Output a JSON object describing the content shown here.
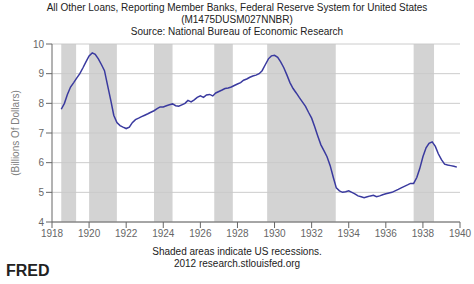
{
  "chart_data": {
    "type": "line",
    "title": "All Other Loans, Reporting Member Banks, Federal Reserve System for United States (M1475DUSM027NNBR)",
    "subtitle": "Source: National Bureau of Economic Research",
    "y_label": "(Billions Of Dollars)",
    "annotations": [
      "Shaded areas indicate US recessions.",
      "2012 research.stlouisfed.org",
      "FRED"
    ],
    "xlim": [
      1918,
      1940
    ],
    "ylim": [
      4,
      10
    ],
    "yticks": [
      4,
      5,
      6,
      7,
      8,
      9,
      10
    ],
    "xticks": [
      1918,
      1920,
      1922,
      1924,
      1926,
      1928,
      1930,
      1932,
      1934,
      1936,
      1938,
      1940
    ],
    "grid": true,
    "color": "#3a3a9f",
    "recessions": {
      "color": "#c8c8c8",
      "ranges": [
        [
          1918.5,
          1919.3
        ],
        [
          1920.0,
          1921.5
        ],
        [
          1923.5,
          1924.5
        ],
        [
          1926.75,
          1927.75
        ],
        [
          1929.6,
          1933.3
        ],
        [
          1937.5,
          1938.6
        ]
      ]
    },
    "x": [
      1918.5,
      1918.67,
      1918.83,
      1919.0,
      1919.17,
      1919.33,
      1919.5,
      1919.67,
      1919.83,
      1920.0,
      1920.17,
      1920.33,
      1920.5,
      1920.67,
      1920.83,
      1921.0,
      1921.17,
      1921.33,
      1921.5,
      1921.67,
      1921.83,
      1922.0,
      1922.17,
      1922.33,
      1922.5,
      1922.67,
      1922.83,
      1923.0,
      1923.17,
      1923.33,
      1923.5,
      1923.67,
      1923.83,
      1924.0,
      1924.17,
      1924.33,
      1924.5,
      1924.67,
      1924.83,
      1925.0,
      1925.17,
      1925.33,
      1925.5,
      1925.67,
      1925.83,
      1926.0,
      1926.17,
      1926.33,
      1926.5,
      1926.67,
      1926.83,
      1927.0,
      1927.17,
      1927.33,
      1927.5,
      1927.67,
      1927.83,
      1928.0,
      1928.17,
      1928.33,
      1928.5,
      1928.67,
      1928.83,
      1929.0,
      1929.17,
      1929.33,
      1929.5,
      1929.67,
      1929.83,
      1930.0,
      1930.17,
      1930.33,
      1930.5,
      1930.67,
      1930.83,
      1931.0,
      1931.17,
      1931.33,
      1931.5,
      1931.67,
      1931.83,
      1932.0,
      1932.17,
      1932.33,
      1932.5,
      1932.67,
      1932.83,
      1933.0,
      1933.17,
      1933.33,
      1933.5,
      1933.67,
      1933.83,
      1934.0,
      1934.17,
      1934.33,
      1934.5,
      1934.67,
      1934.83,
      1935.0,
      1935.17,
      1935.33,
      1935.5,
      1935.67,
      1935.83,
      1936.0,
      1936.17,
      1936.33,
      1936.5,
      1936.67,
      1936.83,
      1937.0,
      1937.17,
      1937.33,
      1937.5,
      1937.67,
      1937.83,
      1938.0,
      1938.17,
      1938.33,
      1938.5,
      1938.67,
      1938.83,
      1939.0,
      1939.17,
      1939.33,
      1939.5,
      1939.67,
      1939.83
    ],
    "values": [
      7.8,
      8.0,
      8.3,
      8.55,
      8.7,
      8.85,
      9.0,
      9.2,
      9.4,
      9.6,
      9.7,
      9.65,
      9.5,
      9.3,
      9.1,
      8.6,
      8.1,
      7.6,
      7.35,
      7.25,
      7.2,
      7.15,
      7.2,
      7.35,
      7.45,
      7.5,
      7.55,
      7.6,
      7.65,
      7.7,
      7.75,
      7.82,
      7.88,
      7.88,
      7.92,
      7.95,
      7.98,
      7.92,
      7.9,
      7.95,
      8.0,
      8.1,
      8.05,
      8.12,
      8.2,
      8.25,
      8.2,
      8.28,
      8.3,
      8.25,
      8.35,
      8.4,
      8.45,
      8.5,
      8.52,
      8.55,
      8.6,
      8.65,
      8.7,
      8.78,
      8.82,
      8.88,
      8.92,
      8.95,
      9.0,
      9.1,
      9.3,
      9.5,
      9.6,
      9.62,
      9.55,
      9.4,
      9.2,
      8.95,
      8.7,
      8.5,
      8.35,
      8.2,
      8.05,
      7.9,
      7.7,
      7.5,
      7.2,
      6.9,
      6.6,
      6.4,
      6.2,
      5.9,
      5.5,
      5.15,
      5.05,
      5.0,
      5.02,
      5.05,
      5.0,
      4.95,
      4.88,
      4.85,
      4.82,
      4.85,
      4.88,
      4.9,
      4.85,
      4.88,
      4.92,
      4.95,
      4.98,
      5.0,
      5.05,
      5.1,
      5.15,
      5.2,
      5.25,
      5.3,
      5.3,
      5.5,
      5.8,
      6.2,
      6.5,
      6.65,
      6.7,
      6.55,
      6.3,
      6.1,
      5.95,
      5.92,
      5.9,
      5.88,
      5.85
    ]
  }
}
